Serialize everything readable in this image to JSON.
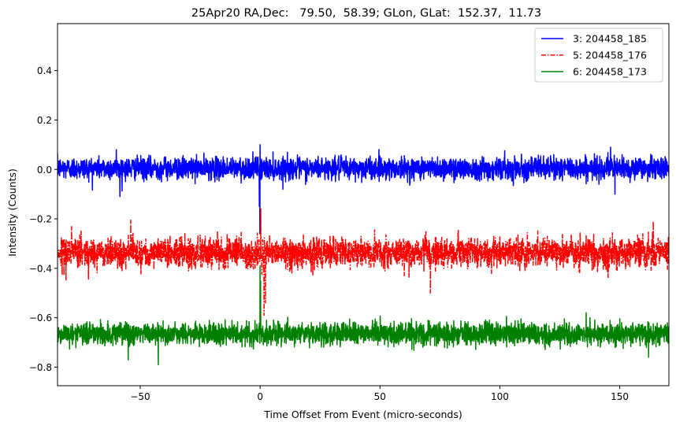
{
  "chart_data": {
    "type": "line",
    "title": "25Apr20 RA,Dec:   79.50,  58.39; GLon, GLat:  152.37,  11.73",
    "xlabel": "Time Offset From Event (micro-seconds)",
    "ylabel": "Intensity (Counts)",
    "xlim": [
      -84.5,
      170.5
    ],
    "ylim": [
      -0.875,
      0.59
    ],
    "xticks": [
      -50,
      0,
      50,
      100,
      150
    ],
    "yticks": [
      -0.8,
      -0.6,
      -0.4,
      -0.2,
      0.0,
      0.2,
      0.4
    ],
    "xtick_labels": [
      "−50",
      "0",
      "50",
      "100",
      "150"
    ],
    "ytick_labels": [
      "−0.8",
      "−0.6",
      "−0.4",
      "−0.2",
      "0.0",
      "0.2",
      "0.4"
    ],
    "grid": false,
    "legend_position": "top-right",
    "series": [
      {
        "name": "3: 204458_185",
        "label": "  3: 204458_185",
        "color": "#0000ff",
        "style": "solid",
        "baseline": 0.005,
        "noise_sd": 0.022,
        "spikes": [
          {
            "x": -58.5,
            "y": -0.11
          },
          {
            "x": -60.0,
            "y": 0.08
          },
          {
            "x": 0.0,
            "y": 0.1
          },
          {
            "x": -0.3,
            "y": -0.15
          },
          {
            "x": -0.1,
            "y": -0.26
          },
          {
            "x": 146.2,
            "y": 0.09
          },
          {
            "x": 148.0,
            "y": -0.1
          }
        ]
      },
      {
        "name": "5: 204458_176",
        "label": "  5: 204458_176",
        "color": "#ff0000",
        "style": "dashdot",
        "baseline": -0.335,
        "noise_sd": 0.03,
        "spikes": [
          {
            "x": -54.0,
            "y": -0.205
          },
          {
            "x": 0.3,
            "y": -0.16
          },
          {
            "x": 1.6,
            "y": -0.59
          },
          {
            "x": 2.2,
            "y": -0.54
          },
          {
            "x": 71.0,
            "y": -0.5
          },
          {
            "x": 164.0,
            "y": -0.21
          },
          {
            "x": -81.0,
            "y": -0.45
          }
        ]
      },
      {
        "name": "6: 204458_173",
        "label": "  6: 204458_173",
        "color": "#008000",
        "style": "solid",
        "baseline": -0.665,
        "noise_sd": 0.022,
        "spikes": [
          {
            "x": -42.5,
            "y": -0.79
          },
          {
            "x": 0.0,
            "y": -0.39
          },
          {
            "x": 0.2,
            "y": -0.45
          },
          {
            "x": -55.0,
            "y": -0.77
          },
          {
            "x": 136.0,
            "y": -0.58
          },
          {
            "x": 162.0,
            "y": -0.76
          }
        ]
      }
    ]
  }
}
